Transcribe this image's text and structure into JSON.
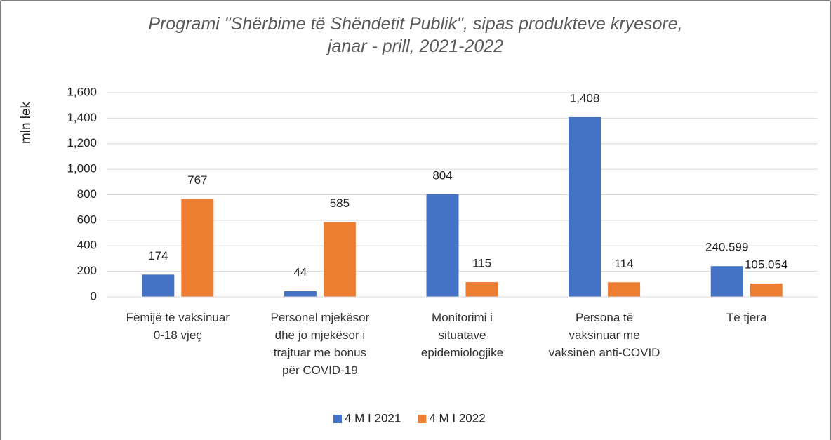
{
  "chart_data": {
    "type": "bar",
    "title": "Programi \"Shërbime të Shëndetit Publik\", sipas produkteve kryesore,\njanar - prill, 2021-2022",
    "y_label": "mln lek",
    "categories": [
      "Fëmijë të vaksinuar\n0-18 vjeç",
      "Personel mjekësor\ndhe jo mjekësor i\ntrajtuar me bonus\npër COVID-19",
      "Monitorimi i\nsituatave\nepidemiologjike",
      "Persona të\nvaksinuar me\nvaksinën anti-COVID",
      "Të tjera"
    ],
    "series": [
      {
        "name": "4 M I 2021",
        "color": "#4472c4",
        "values": [
          174,
          44,
          804,
          1408,
          240.599
        ],
        "value_labels": [
          "174",
          "44",
          "804",
          "1,408",
          "240.599"
        ]
      },
      {
        "name": "4 M I 2022",
        "color": "#ed7d31",
        "values": [
          767,
          585,
          115,
          114,
          105.054
        ],
        "value_labels": [
          "767",
          "585",
          "115",
          "114",
          "105.054"
        ]
      }
    ],
    "ylim": [
      0,
      1600
    ],
    "yticks": [
      0,
      200,
      400,
      600,
      800,
      {
        "value": 1000,
        "label": "1,000"
      },
      {
        "value": 1200,
        "label": "1,200"
      },
      {
        "value": 1400,
        "label": "1,400"
      },
      {
        "value": 1600,
        "label": "1,600"
      }
    ],
    "grid": true,
    "legend": "bottom"
  }
}
